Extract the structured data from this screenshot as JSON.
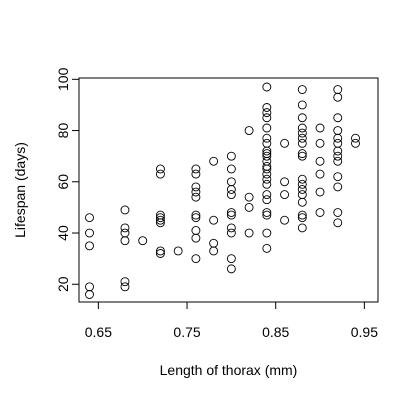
{
  "chart_data": {
    "type": "scatter",
    "title": "",
    "xlabel": "Length of thorax (mm)",
    "ylabel": "Lifespan (days)",
    "xlim": [
      0.64,
      0.94
    ],
    "ylim": [
      16,
      97
    ],
    "xticks": [
      0.65,
      0.75,
      0.85,
      0.95
    ],
    "xtick_labels": [
      "0.65",
      "0.75",
      "0.85",
      "0.95"
    ],
    "yticks": [
      20,
      40,
      60,
      80,
      100
    ],
    "ytick_labels": [
      "20",
      "40",
      "60",
      "80",
      "100"
    ],
    "grid": false,
    "marker": "open-circle",
    "color": "#000000",
    "points": [
      {
        "x": 0.64,
        "y": 16
      },
      {
        "x": 0.64,
        "y": 19
      },
      {
        "x": 0.64,
        "y": 35
      },
      {
        "x": 0.64,
        "y": 40
      },
      {
        "x": 0.64,
        "y": 46
      },
      {
        "x": 0.68,
        "y": 19
      },
      {
        "x": 0.68,
        "y": 21
      },
      {
        "x": 0.68,
        "y": 37
      },
      {
        "x": 0.68,
        "y": 40
      },
      {
        "x": 0.68,
        "y": 42
      },
      {
        "x": 0.68,
        "y": 49
      },
      {
        "x": 0.7,
        "y": 37
      },
      {
        "x": 0.72,
        "y": 32
      },
      {
        "x": 0.72,
        "y": 33
      },
      {
        "x": 0.72,
        "y": 44
      },
      {
        "x": 0.72,
        "y": 45
      },
      {
        "x": 0.72,
        "y": 46
      },
      {
        "x": 0.72,
        "y": 47
      },
      {
        "x": 0.72,
        "y": 63
      },
      {
        "x": 0.72,
        "y": 65
      },
      {
        "x": 0.74,
        "y": 33
      },
      {
        "x": 0.76,
        "y": 30
      },
      {
        "x": 0.76,
        "y": 38
      },
      {
        "x": 0.76,
        "y": 41
      },
      {
        "x": 0.76,
        "y": 46
      },
      {
        "x": 0.76,
        "y": 47
      },
      {
        "x": 0.76,
        "y": 54
      },
      {
        "x": 0.76,
        "y": 56
      },
      {
        "x": 0.76,
        "y": 58
      },
      {
        "x": 0.76,
        "y": 63
      },
      {
        "x": 0.76,
        "y": 65
      },
      {
        "x": 0.78,
        "y": 33
      },
      {
        "x": 0.78,
        "y": 36
      },
      {
        "x": 0.78,
        "y": 45
      },
      {
        "x": 0.78,
        "y": 68
      },
      {
        "x": 0.8,
        "y": 26
      },
      {
        "x": 0.8,
        "y": 30
      },
      {
        "x": 0.8,
        "y": 40
      },
      {
        "x": 0.8,
        "y": 42
      },
      {
        "x": 0.8,
        "y": 47
      },
      {
        "x": 0.8,
        "y": 48
      },
      {
        "x": 0.8,
        "y": 55
      },
      {
        "x": 0.8,
        "y": 57
      },
      {
        "x": 0.8,
        "y": 60
      },
      {
        "x": 0.8,
        "y": 65
      },
      {
        "x": 0.8,
        "y": 70
      },
      {
        "x": 0.82,
        "y": 40
      },
      {
        "x": 0.82,
        "y": 50
      },
      {
        "x": 0.82,
        "y": 54
      },
      {
        "x": 0.82,
        "y": 80
      },
      {
        "x": 0.84,
        "y": 34
      },
      {
        "x": 0.84,
        "y": 40
      },
      {
        "x": 0.84,
        "y": 47
      },
      {
        "x": 0.84,
        "y": 48
      },
      {
        "x": 0.84,
        "y": 53
      },
      {
        "x": 0.84,
        "y": 55
      },
      {
        "x": 0.84,
        "y": 59
      },
      {
        "x": 0.84,
        "y": 61
      },
      {
        "x": 0.84,
        "y": 63
      },
      {
        "x": 0.84,
        "y": 65
      },
      {
        "x": 0.84,
        "y": 66
      },
      {
        "x": 0.84,
        "y": 68
      },
      {
        "x": 0.84,
        "y": 70
      },
      {
        "x": 0.84,
        "y": 71
      },
      {
        "x": 0.84,
        "y": 72
      },
      {
        "x": 0.84,
        "y": 75
      },
      {
        "x": 0.84,
        "y": 77
      },
      {
        "x": 0.84,
        "y": 81
      },
      {
        "x": 0.84,
        "y": 85
      },
      {
        "x": 0.84,
        "y": 87
      },
      {
        "x": 0.84,
        "y": 89
      },
      {
        "x": 0.84,
        "y": 97
      },
      {
        "x": 0.86,
        "y": 45
      },
      {
        "x": 0.86,
        "y": 55
      },
      {
        "x": 0.86,
        "y": 60
      },
      {
        "x": 0.86,
        "y": 75
      },
      {
        "x": 0.88,
        "y": 42
      },
      {
        "x": 0.88,
        "y": 46
      },
      {
        "x": 0.88,
        "y": 47
      },
      {
        "x": 0.88,
        "y": 52
      },
      {
        "x": 0.88,
        "y": 55
      },
      {
        "x": 0.88,
        "y": 57
      },
      {
        "x": 0.88,
        "y": 59
      },
      {
        "x": 0.88,
        "y": 61
      },
      {
        "x": 0.88,
        "y": 70
      },
      {
        "x": 0.88,
        "y": 71
      },
      {
        "x": 0.88,
        "y": 75
      },
      {
        "x": 0.88,
        "y": 77
      },
      {
        "x": 0.88,
        "y": 79
      },
      {
        "x": 0.88,
        "y": 81
      },
      {
        "x": 0.88,
        "y": 85
      },
      {
        "x": 0.88,
        "y": 90
      },
      {
        "x": 0.88,
        "y": 96
      },
      {
        "x": 0.9,
        "y": 48
      },
      {
        "x": 0.9,
        "y": 56
      },
      {
        "x": 0.9,
        "y": 63
      },
      {
        "x": 0.9,
        "y": 68
      },
      {
        "x": 0.9,
        "y": 75
      },
      {
        "x": 0.9,
        "y": 81
      },
      {
        "x": 0.92,
        "y": 44
      },
      {
        "x": 0.92,
        "y": 48
      },
      {
        "x": 0.92,
        "y": 58
      },
      {
        "x": 0.92,
        "y": 62
      },
      {
        "x": 0.92,
        "y": 68
      },
      {
        "x": 0.92,
        "y": 70
      },
      {
        "x": 0.92,
        "y": 72
      },
      {
        "x": 0.92,
        "y": 75
      },
      {
        "x": 0.92,
        "y": 77
      },
      {
        "x": 0.92,
        "y": 80
      },
      {
        "x": 0.92,
        "y": 85
      },
      {
        "x": 0.92,
        "y": 93
      },
      {
        "x": 0.92,
        "y": 96
      },
      {
        "x": 0.94,
        "y": 75
      },
      {
        "x": 0.94,
        "y": 77
      }
    ]
  }
}
